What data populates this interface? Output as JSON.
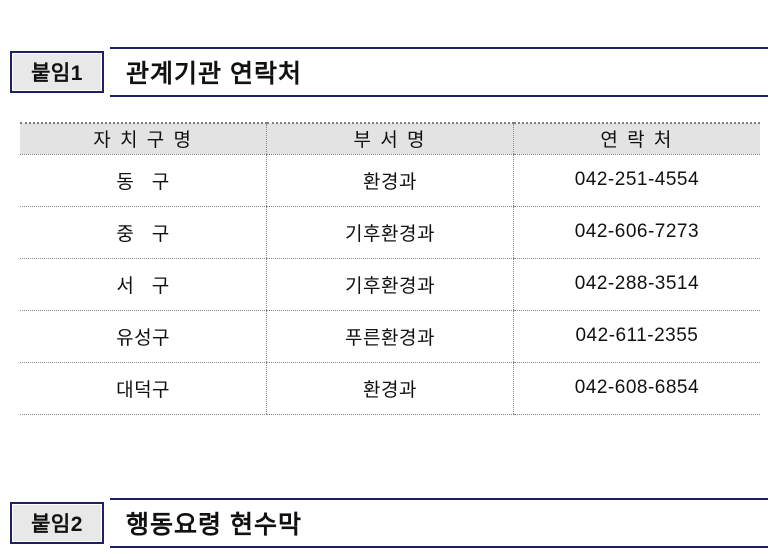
{
  "attachment1": {
    "badge": "붙임1",
    "title": "관계기관 연락처"
  },
  "attachment2": {
    "badge": "붙임2",
    "title": "행동요령 현수막"
  },
  "table": {
    "headers": [
      "자 치 구 명",
      "부 서 명",
      "연 락 처"
    ],
    "rows": [
      {
        "district": "동   구",
        "department": "환경과",
        "phone": "042-251-4554"
      },
      {
        "district": "중   구",
        "department": "기후환경과",
        "phone": "042-606-7273"
      },
      {
        "district": "서   구",
        "department": "기후환경과",
        "phone": "042-288-3514"
      },
      {
        "district": "유성구",
        "department": "푸른환경과",
        "phone": "042-611-2355"
      },
      {
        "district": "대덕구",
        "department": "환경과",
        "phone": "042-608-6854"
      }
    ]
  },
  "colors": {
    "accent_navy": "#1f1f63",
    "badge_background": "#e8e8e8",
    "table_header_background": "#e3e3e3",
    "dotted_line": "#8a8a8a"
  }
}
